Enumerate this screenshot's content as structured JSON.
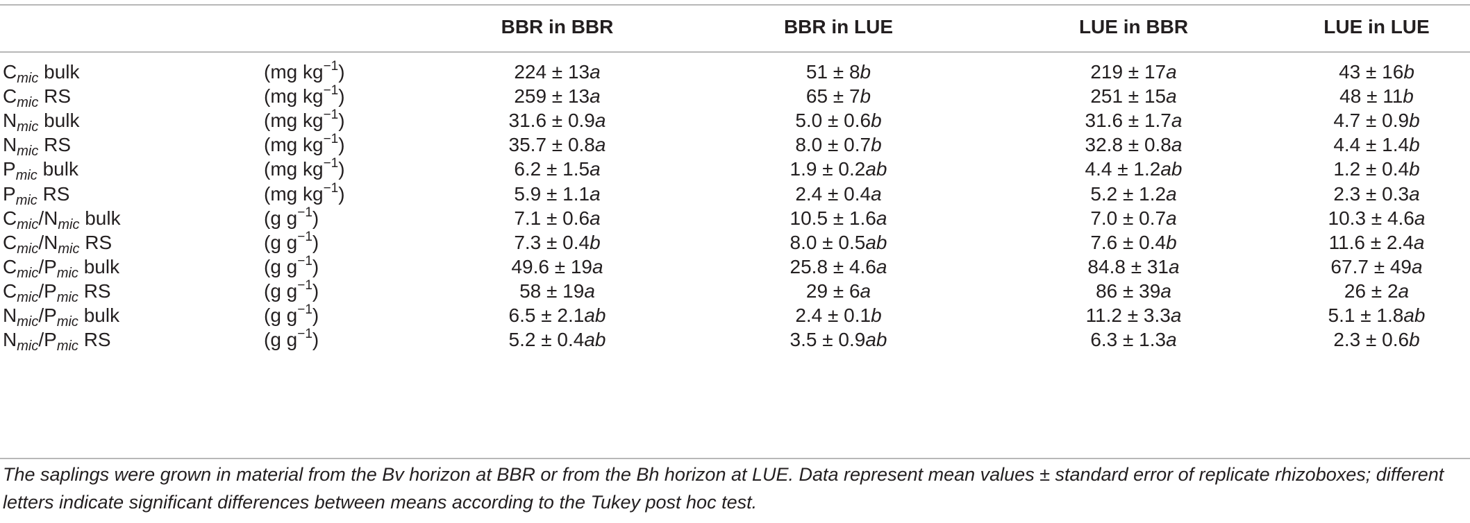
{
  "table": {
    "columns": [
      "BBR in BBR",
      "BBR in LUE",
      "LUE in BBR",
      "LUE in LUE"
    ],
    "rows": [
      {
        "pre": "C",
        "sub": "mic",
        "mid": "",
        "sub2": "",
        "post": " bulk",
        "unit_pre": "(mg kg",
        "unit_exp": "−1",
        "unit_post": ")",
        "vals": [
          [
            "224 ± 13",
            "a"
          ],
          [
            "51 ± 8",
            "b"
          ],
          [
            "219 ± 17",
            "a"
          ],
          [
            "43 ± 16",
            "b"
          ]
        ]
      },
      {
        "pre": "C",
        "sub": "mic",
        "mid": "",
        "sub2": "",
        "post": " RS",
        "unit_pre": "(mg kg",
        "unit_exp": "−1",
        "unit_post": ")",
        "vals": [
          [
            "259 ± 13",
            "a"
          ],
          [
            "65 ± 7",
            "b"
          ],
          [
            "251 ± 15",
            "a"
          ],
          [
            "48 ± 11",
            "b"
          ]
        ]
      },
      {
        "pre": "N",
        "sub": "mic",
        "mid": "",
        "sub2": "",
        "post": " bulk",
        "unit_pre": "(mg kg",
        "unit_exp": "−1",
        "unit_post": ")",
        "vals": [
          [
            "31.6 ± 0.9",
            "a"
          ],
          [
            "5.0 ± 0.6",
            "b"
          ],
          [
            "31.6 ± 1.7",
            "a"
          ],
          [
            "4.7 ± 0.9",
            "b"
          ]
        ]
      },
      {
        "pre": "N",
        "sub": "mic",
        "mid": "",
        "sub2": "",
        "post": " RS",
        "unit_pre": "(mg kg",
        "unit_exp": "−1",
        "unit_post": ")",
        "vals": [
          [
            "35.7 ± 0.8",
            "a"
          ],
          [
            "8.0 ± 0.7",
            "b"
          ],
          [
            "32.8 ± 0.8",
            "a"
          ],
          [
            "4.4 ± 1.4",
            "b"
          ]
        ]
      },
      {
        "pre": "P",
        "sub": "mic",
        "mid": "",
        "sub2": "",
        "post": " bulk",
        "unit_pre": "(mg kg",
        "unit_exp": "−1",
        "unit_post": ")",
        "vals": [
          [
            "6.2 ± 1.5",
            "a"
          ],
          [
            "1.9 ± 0.2",
            "ab"
          ],
          [
            "4.4 ± 1.2",
            "ab"
          ],
          [
            "1.2 ± 0.4",
            "b"
          ]
        ]
      },
      {
        "pre": "P",
        "sub": "mic",
        "mid": "",
        "sub2": "",
        "post": " RS",
        "unit_pre": "(mg kg",
        "unit_exp": "−1",
        "unit_post": ")",
        "vals": [
          [
            "5.9 ± 1.1",
            "a"
          ],
          [
            "2.4 ± 0.4",
            "a"
          ],
          [
            "5.2 ± 1.2",
            "a"
          ],
          [
            "2.3 ± 0.3",
            "a"
          ]
        ]
      },
      {
        "pre": "C",
        "sub": "mic",
        "mid": "/N",
        "sub2": "mic",
        "post": " bulk",
        "unit_pre": "(g g",
        "unit_exp": "−1",
        "unit_post": ")",
        "vals": [
          [
            "7.1 ± 0.6",
            "a"
          ],
          [
            "10.5 ± 1.6",
            "a"
          ],
          [
            "7.0 ± 0.7",
            "a"
          ],
          [
            "10.3 ± 4.6",
            "a"
          ]
        ]
      },
      {
        "pre": "C",
        "sub": "mic",
        "mid": "/N",
        "sub2": "mic",
        "post": " RS",
        "unit_pre": "(g g",
        "unit_exp": "−1",
        "unit_post": ")",
        "vals": [
          [
            "7.3 ± 0.4",
            "b"
          ],
          [
            "8.0 ± 0.5",
            "ab"
          ],
          [
            "7.6 ± 0.4",
            "b"
          ],
          [
            "11.6 ± 2.4",
            "a"
          ]
        ]
      },
      {
        "pre": "C",
        "sub": "mic",
        "mid": "/P",
        "sub2": "mic",
        "post": " bulk",
        "unit_pre": "(g g",
        "unit_exp": "−1",
        "unit_post": ")",
        "vals": [
          [
            "49.6 ± 19",
            "a"
          ],
          [
            "25.8 ± 4.6",
            "a"
          ],
          [
            "84.8 ± 31",
            "a"
          ],
          [
            "67.7 ± 49",
            "a"
          ]
        ]
      },
      {
        "pre": "C",
        "sub": "mic",
        "mid": "/P",
        "sub2": "mic",
        "post": " RS",
        "unit_pre": "(g g",
        "unit_exp": "−1",
        "unit_post": ")",
        "vals": [
          [
            "58 ± 19",
            "a"
          ],
          [
            "29 ± 6",
            "a"
          ],
          [
            "86 ± 39",
            "a"
          ],
          [
            "26 ± 2",
            "a"
          ]
        ]
      },
      {
        "pre": "N",
        "sub": "mic",
        "mid": "/P",
        "sub2": "mic",
        "post": " bulk",
        "unit_pre": "(g g",
        "unit_exp": "−1",
        "unit_post": ")",
        "vals": [
          [
            "6.5 ± 2.1",
            "ab"
          ],
          [
            "2.4 ± 0.1",
            "b"
          ],
          [
            "11.2 ± 3.3",
            "a"
          ],
          [
            "5.1 ± 1.8",
            "ab"
          ]
        ]
      },
      {
        "pre": "N",
        "sub": "mic",
        "mid": "/P",
        "sub2": "mic",
        "post": " RS",
        "unit_pre": "(g g",
        "unit_exp": "−1",
        "unit_post": ")",
        "vals": [
          [
            "5.2 ± 0.4",
            "ab"
          ],
          [
            "3.5 ± 0.9",
            "ab"
          ],
          [
            "6.3 ± 1.3",
            "a"
          ],
          [
            "2.3 ± 0.6",
            "b"
          ]
        ]
      }
    ],
    "footnote": "The saplings were grown in material from the Bv horizon at BBR or from the Bh horizon at LUE. Data represent mean values ± standard error of replicate rhizoboxes; different letters indicate significant differences between means according to the Tukey post hoc test."
  }
}
